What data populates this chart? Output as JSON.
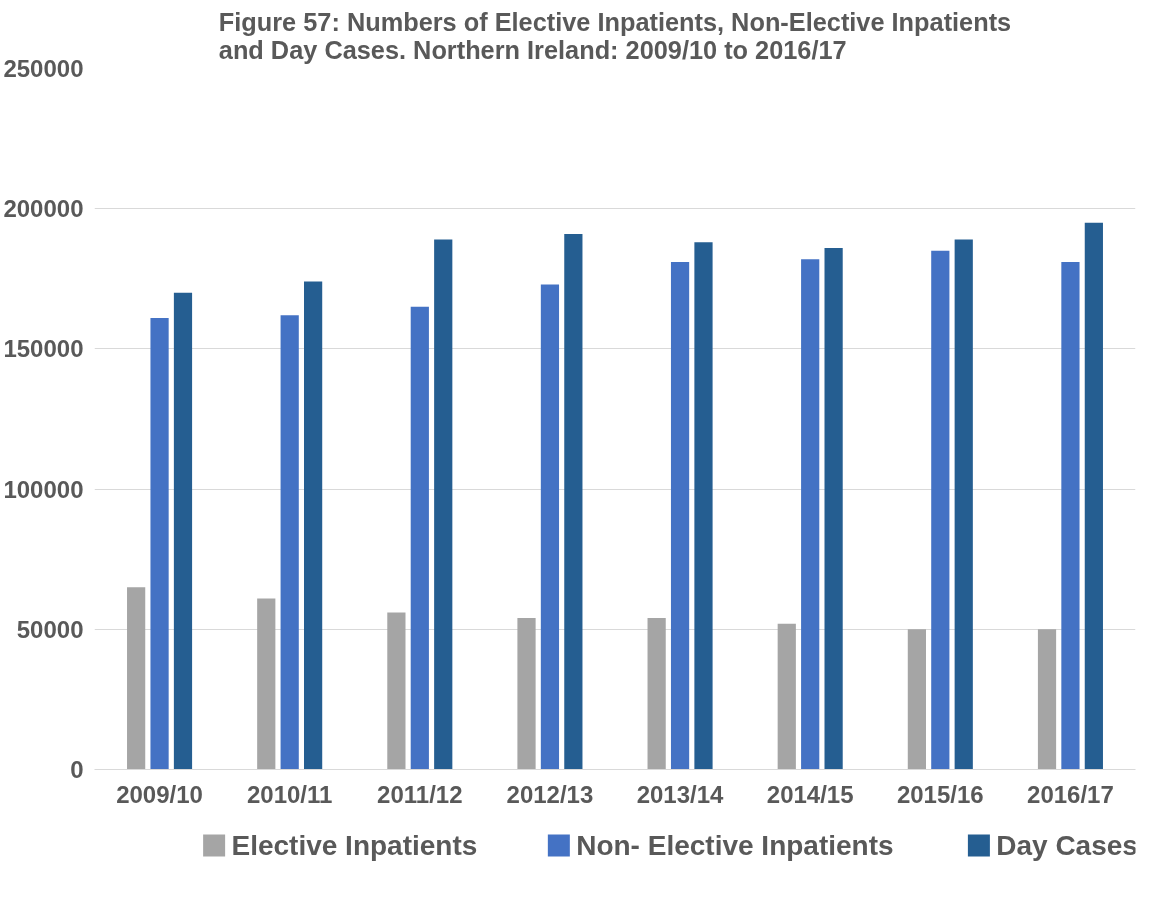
{
  "chart_data": {
    "type": "bar",
    "title": "Figure 57: Numbers of Elective Inpatients, Non-Elective Inpatients\nand Day Cases. Northern Ireland: 2009/10 to 2016/17",
    "categories": [
      "2009/10",
      "2010/11",
      "2011/12",
      "2012/13",
      "2013/14",
      "2014/15",
      "2015/16",
      "2016/17"
    ],
    "series": [
      {
        "name": "Elective Inpatients",
        "color": "#a5a5a5",
        "values": [
          65000,
          61000,
          56000,
          54000,
          54000,
          52000,
          50000,
          50000
        ]
      },
      {
        "name": "Non- Elective Inpatients",
        "color": "#4472c4",
        "values": [
          161000,
          162000,
          165000,
          173000,
          181000,
          182000,
          185000,
          181000
        ]
      },
      {
        "name": "Day Cases",
        "color": "#255e91",
        "values": [
          170000,
          174000,
          189000,
          191000,
          188000,
          186000,
          189000,
          195000
        ]
      }
    ],
    "ylim": [
      0,
      250000
    ],
    "yticks": [
      0,
      50000,
      100000,
      150000,
      200000,
      250000
    ],
    "grid": "y",
    "legend": "bottom"
  }
}
